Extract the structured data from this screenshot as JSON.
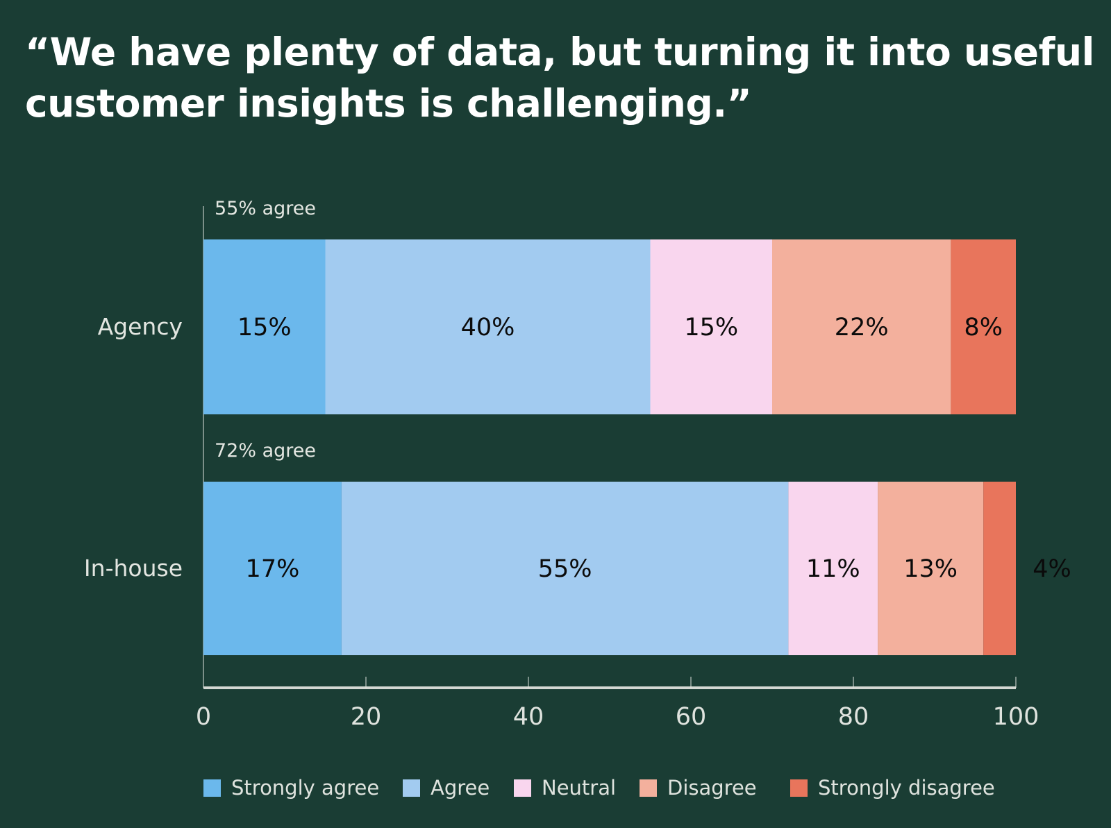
{
  "title": "“We have plenty of data, but turning it into useful customer insights is challenging.”",
  "chart_data": {
    "type": "bar",
    "orientation": "horizontal",
    "stacked": true,
    "title": "“We have plenty of data, but turning it into useful customer insights is challenging.”",
    "categories": [
      "Agency",
      "In-house"
    ],
    "category_annotations": [
      "55% agree",
      "72% agree"
    ],
    "series": [
      {
        "name": "Strongly agree",
        "values": [
          15,
          17
        ],
        "labels": [
          "15%",
          "17%"
        ],
        "color": "#6bb8ec"
      },
      {
        "name": "Agree",
        "values": [
          40,
          55
        ],
        "labels": [
          "40%",
          "55%"
        ],
        "color": "#a2cbf0"
      },
      {
        "name": "Neutral",
        "values": [
          15,
          11
        ],
        "labels": [
          "15%",
          "11%"
        ],
        "color": "#f9d6ee"
      },
      {
        "name": "Disagree",
        "values": [
          22,
          13
        ],
        "labels": [
          "22%",
          "13%"
        ],
        "color": "#f3b09d"
      },
      {
        "name": "Strongly disagree",
        "values": [
          8,
          4
        ],
        "labels": [
          "8%",
          "4%"
        ],
        "color": "#e8755c"
      }
    ],
    "xlim": [
      0,
      100
    ],
    "xticks": [
      "0",
      "20",
      "40",
      "60",
      "80",
      "100"
    ],
    "xlabel": "",
    "ylabel": "",
    "grid": false,
    "legend_position": "bottom"
  },
  "colors": {
    "background": "#1a3d34",
    "text": "#e3e6e1"
  }
}
